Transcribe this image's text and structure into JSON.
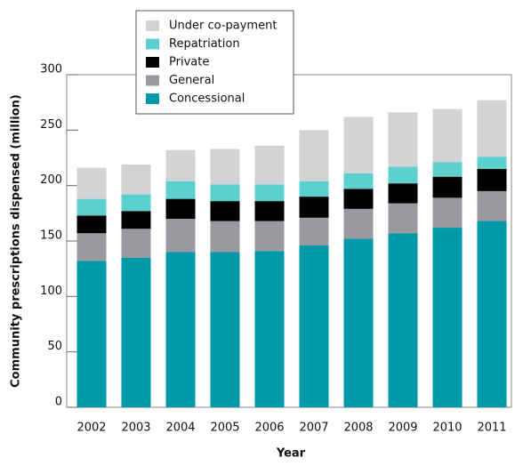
{
  "chart_data": {
    "type": "stacked_bar",
    "x_label": "Year",
    "y_label": "Community prescriptions dispensed (million)",
    "categories": [
      "2002",
      "2003",
      "2004",
      "2005",
      "2006",
      "2007",
      "2008",
      "2009",
      "2010",
      "2011"
    ],
    "series": [
      {
        "name": "Concessional",
        "color": "#0099a8",
        "values": [
          132,
          135,
          140,
          140,
          141,
          146,
          152,
          157,
          162,
          168
        ]
      },
      {
        "name": "General",
        "color": "#999aa0",
        "values": [
          25,
          26,
          30,
          28,
          27,
          25,
          27,
          27,
          27,
          27
        ]
      },
      {
        "name": "Private",
        "color": "#000000",
        "values": [
          16,
          16,
          18,
          18,
          18,
          19,
          18,
          18,
          19,
          20
        ]
      },
      {
        "name": "Repatriation",
        "color": "#5ccfcf",
        "values": [
          15,
          15,
          16,
          15,
          15,
          14,
          14,
          15,
          13,
          11
        ]
      },
      {
        "name": "Under co-payment",
        "color": "#d3d3d5",
        "values": [
          28,
          27,
          28,
          32,
          35,
          46,
          51,
          49,
          48,
          51
        ]
      }
    ],
    "ylim": [
      0,
      300
    ],
    "yticks": [
      0,
      50,
      100,
      150,
      200,
      250,
      300
    ]
  }
}
